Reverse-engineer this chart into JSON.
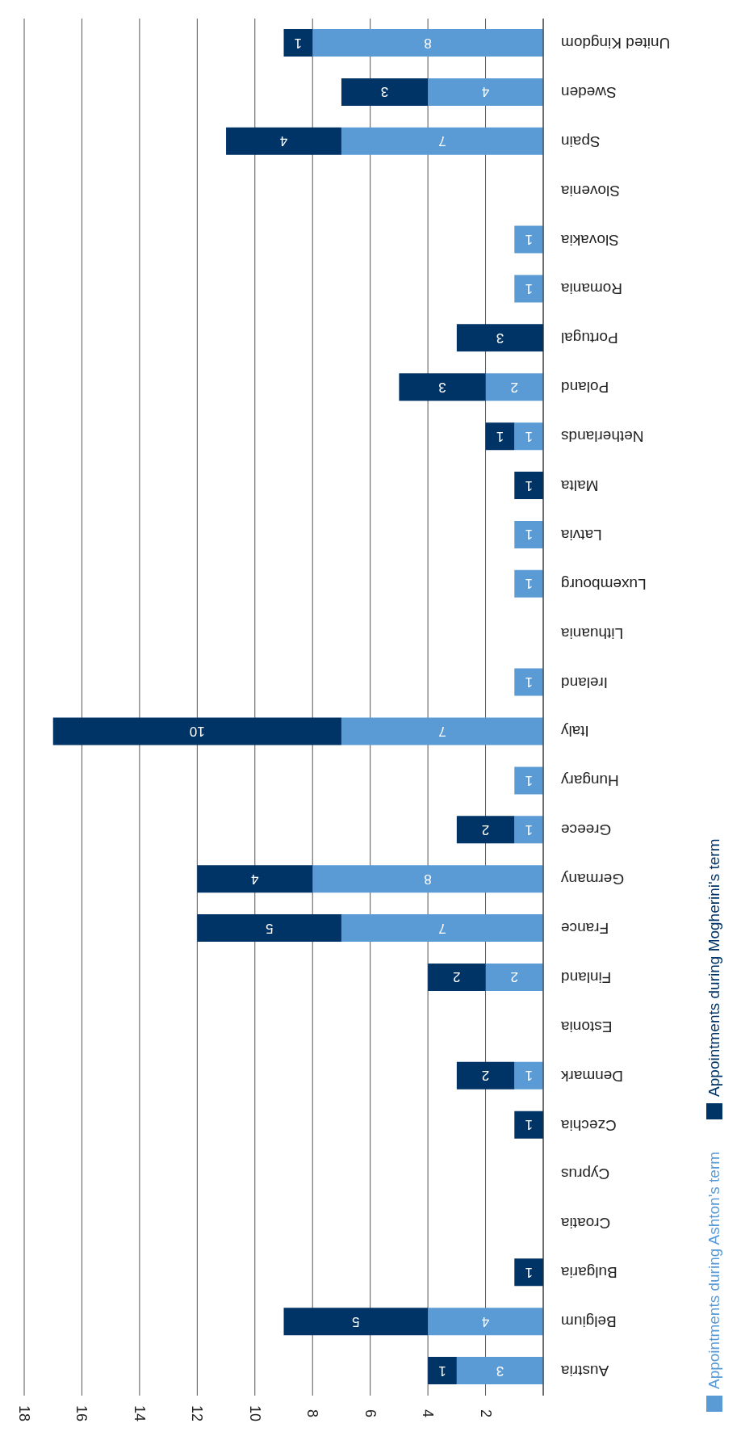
{
  "chart_data": {
    "type": "bar",
    "stacked": true,
    "orientation": "horizontal",
    "categories": [
      "United Kingdom",
      "Sweden",
      "Spain",
      "Slovenia",
      "Slovakia",
      "Romania",
      "Portugal",
      "Poland",
      "Netherlands",
      "Malta",
      "Latvia",
      "Luxembourg",
      "Lithuania",
      "Ireland ",
      "Italy",
      "Hungary",
      "Greece",
      "Germany",
      "France",
      "Finland",
      "Estonia",
      "Denmark",
      "Czechia",
      "Cyprus",
      "Croatia",
      "Bulgaria",
      "Belgium",
      "Austria"
    ],
    "series": [
      {
        "name": "Appointments during Ashton's term",
        "color": "#5b9bd5",
        "values": [
          8,
          4,
          7,
          null,
          1,
          1,
          null,
          2,
          1,
          null,
          1,
          1,
          null,
          1,
          7,
          1,
          1,
          8,
          7,
          2,
          null,
          1,
          null,
          null,
          null,
          null,
          4,
          3
        ]
      },
      {
        "name": "Appointments during Mogherini's term",
        "color": "#003366",
        "values": [
          1,
          3,
          4,
          null,
          null,
          null,
          3,
          3,
          1,
          1,
          null,
          null,
          null,
          null,
          10,
          null,
          2,
          4,
          5,
          2,
          null,
          2,
          1,
          null,
          null,
          1,
          5,
          1
        ]
      }
    ],
    "xlim": [
      18,
      0
    ],
    "xticks": [
      2,
      4,
      6,
      8,
      10,
      12,
      14,
      16,
      18
    ],
    "grid": "x",
    "legend": "right",
    "data_labels": true
  }
}
